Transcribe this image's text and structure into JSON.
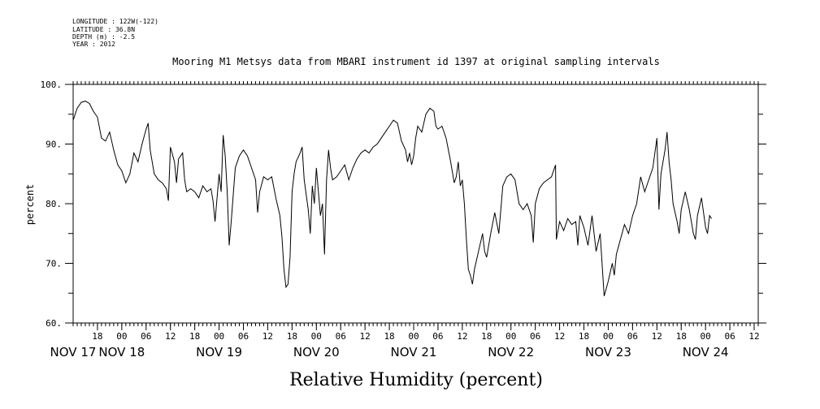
{
  "header": {
    "longitude": "LONGITUDE : 122W(-122)",
    "latitude": "LATITUDE : 36.8N",
    "depth": "DEPTH (m) : -2.5",
    "year": "YEAR : 2012",
    "title": "Mooring M1 Metsys data from MBARI instrument id 1397 at original sampling intervals"
  },
  "chart_data": {
    "type": "line",
    "title": "Mooring M1 Metsys data from MBARI instrument id 1397 at original sampling intervals",
    "xlabel": "Relative Humidity (percent)",
    "ylabel": "percent",
    "ylim": [
      60,
      100
    ],
    "yticks": [
      60,
      70,
      80,
      90,
      100
    ],
    "ytick_labels": [
      "60.",
      "70.",
      "80.",
      "90.",
      "100."
    ],
    "xlim_hours": [
      12,
      181
    ],
    "hour_ticks": [
      {
        "h": 18,
        "label": "18"
      },
      {
        "h": 24,
        "label": "00"
      },
      {
        "h": 30,
        "label": "06"
      },
      {
        "h": 36,
        "label": "12"
      },
      {
        "h": 42,
        "label": "18"
      },
      {
        "h": 48,
        "label": "00"
      },
      {
        "h": 54,
        "label": "06"
      },
      {
        "h": 60,
        "label": "12"
      },
      {
        "h": 66,
        "label": "18"
      },
      {
        "h": 72,
        "label": "00"
      },
      {
        "h": 78,
        "label": "06"
      },
      {
        "h": 84,
        "label": "12"
      },
      {
        "h": 90,
        "label": "18"
      },
      {
        "h": 96,
        "label": "00"
      },
      {
        "h": 102,
        "label": "06"
      },
      {
        "h": 108,
        "label": "12"
      },
      {
        "h": 114,
        "label": "18"
      },
      {
        "h": 120,
        "label": "00"
      },
      {
        "h": 126,
        "label": "06"
      },
      {
        "h": 132,
        "label": "12"
      },
      {
        "h": 138,
        "label": "18"
      },
      {
        "h": 144,
        "label": "00"
      },
      {
        "h": 150,
        "label": "06"
      },
      {
        "h": 156,
        "label": "12"
      },
      {
        "h": 162,
        "label": "18"
      },
      {
        "h": 168,
        "label": "00"
      },
      {
        "h": 174,
        "label": "06"
      },
      {
        "h": 180,
        "label": "12"
      }
    ],
    "day_labels": [
      {
        "h": 12,
        "label": "NOV 17"
      },
      {
        "h": 24,
        "label": "NOV 18"
      },
      {
        "h": 48,
        "label": "NOV 19"
      },
      {
        "h": 72,
        "label": "NOV 20"
      },
      {
        "h": 96,
        "label": "NOV 21"
      },
      {
        "h": 120,
        "label": "NOV 22"
      },
      {
        "h": 144,
        "label": "NOV 23"
      },
      {
        "h": 168,
        "label": "NOV 24"
      }
    ],
    "series": [
      {
        "values": [
          [
            12,
            94
          ],
          [
            13,
            96
          ],
          [
            14,
            97
          ],
          [
            15,
            97.2
          ],
          [
            16,
            96.8
          ],
          [
            17,
            95.5
          ],
          [
            18,
            94.5
          ],
          [
            19,
            91
          ],
          [
            20,
            90.5
          ],
          [
            21,
            92
          ],
          [
            22,
            89
          ],
          [
            23,
            86.5
          ],
          [
            24,
            85.5
          ],
          [
            25,
            83.5
          ],
          [
            26,
            85
          ],
          [
            27,
            88.5
          ],
          [
            28,
            87
          ],
          [
            29,
            90
          ],
          [
            30,
            92.5
          ],
          [
            30.5,
            93.5
          ],
          [
            31,
            89
          ],
          [
            32,
            85
          ],
          [
            33,
            84
          ],
          [
            34,
            83.5
          ],
          [
            35,
            82.5
          ],
          [
            35.5,
            80.5
          ],
          [
            36,
            89.5
          ],
          [
            37,
            87
          ],
          [
            37.5,
            83.5
          ],
          [
            38,
            87.5
          ],
          [
            38.5,
            88
          ],
          [
            39,
            88.5
          ],
          [
            39.5,
            84
          ],
          [
            40,
            82
          ],
          [
            41,
            82.5
          ],
          [
            42,
            82
          ],
          [
            43,
            81
          ],
          [
            44,
            83
          ],
          [
            45,
            82
          ],
          [
            46,
            82.5
          ],
          [
            46.5,
            80.5
          ],
          [
            47,
            77
          ],
          [
            47.5,
            81
          ],
          [
            48,
            85
          ],
          [
            48.5,
            82
          ],
          [
            49,
            91.5
          ],
          [
            49.5,
            88
          ],
          [
            50,
            82
          ],
          [
            50.5,
            73
          ],
          [
            51,
            77
          ],
          [
            52,
            86
          ],
          [
            53,
            88
          ],
          [
            54,
            89
          ],
          [
            55,
            88
          ],
          [
            56,
            86
          ],
          [
            57,
            84
          ],
          [
            57.5,
            78.5
          ],
          [
            58,
            82
          ],
          [
            59,
            84.5
          ],
          [
            60,
            84
          ],
          [
            61,
            84.5
          ],
          [
            62,
            81
          ],
          [
            63,
            78
          ],
          [
            63.5,
            74.5
          ],
          [
            64,
            69
          ],
          [
            64.5,
            66
          ],
          [
            65,
            66.5
          ],
          [
            65.5,
            71
          ],
          [
            66,
            82
          ],
          [
            66.5,
            85
          ],
          [
            67,
            87
          ],
          [
            68,
            88.5
          ],
          [
            68.5,
            89.5
          ],
          [
            69,
            84
          ],
          [
            70,
            79
          ],
          [
            70.5,
            75
          ],
          [
            71,
            83
          ],
          [
            71.5,
            80
          ],
          [
            72,
            86
          ],
          [
            72.5,
            82
          ],
          [
            73,
            78
          ],
          [
            73.5,
            80
          ],
          [
            74,
            71.5
          ],
          [
            74.5,
            84
          ],
          [
            75,
            89
          ],
          [
            75.5,
            86
          ],
          [
            76,
            84
          ],
          [
            77,
            84.5
          ],
          [
            78,
            85.5
          ],
          [
            79,
            86.5
          ],
          [
            80,
            84
          ],
          [
            81,
            86
          ],
          [
            82,
            87.5
          ],
          [
            83,
            88.5
          ],
          [
            84,
            89
          ],
          [
            85,
            88.5
          ],
          [
            86,
            89.5
          ],
          [
            87,
            90
          ],
          [
            88,
            91
          ],
          [
            89,
            92
          ],
          [
            90,
            93
          ],
          [
            91,
            94
          ],
          [
            92,
            93.5
          ],
          [
            93,
            90.5
          ],
          [
            94,
            89
          ],
          [
            94.5,
            87
          ],
          [
            95,
            88.5
          ],
          [
            95.5,
            86.5
          ],
          [
            96,
            88
          ],
          [
            96.5,
            91
          ],
          [
            97,
            93
          ],
          [
            98,
            92
          ],
          [
            99,
            95
          ],
          [
            100,
            96
          ],
          [
            101,
            95.5
          ],
          [
            101.5,
            93
          ],
          [
            102,
            92.5
          ],
          [
            103,
            93
          ],
          [
            104,
            91
          ],
          [
            105,
            87.5
          ],
          [
            106,
            83.5
          ],
          [
            106.5,
            84.5
          ],
          [
            107,
            87
          ],
          [
            107.5,
            83
          ],
          [
            108,
            84
          ],
          [
            108.5,
            80
          ],
          [
            109,
            74
          ],
          [
            109.5,
            69
          ],
          [
            110,
            68
          ],
          [
            110.5,
            66.5
          ],
          [
            111,
            69
          ],
          [
            112,
            72
          ],
          [
            113,
            75
          ],
          [
            113.5,
            72
          ],
          [
            114,
            71
          ],
          [
            115,
            75
          ],
          [
            116,
            78.5
          ],
          [
            117,
            75
          ],
          [
            118,
            83
          ],
          [
            119,
            84.5
          ],
          [
            120,
            85
          ],
          [
            121,
            84
          ],
          [
            122,
            80
          ],
          [
            123,
            79
          ],
          [
            124,
            80
          ],
          [
            125,
            78
          ],
          [
            125.5,
            73.5
          ],
          [
            126,
            80
          ],
          [
            127,
            82.5
          ],
          [
            128,
            83.5
          ],
          [
            129,
            84
          ],
          [
            130,
            84.5
          ],
          [
            131,
            86.5
          ],
          [
            131.2,
            74
          ],
          [
            132,
            77
          ],
          [
            133,
            75.5
          ],
          [
            134,
            77.5
          ],
          [
            135,
            76.5
          ],
          [
            136,
            77
          ],
          [
            136.5,
            73
          ],
          [
            137,
            78
          ],
          [
            138,
            76
          ],
          [
            139,
            73
          ],
          [
            140,
            78
          ],
          [
            141,
            72
          ],
          [
            142,
            75
          ],
          [
            143,
            64.5
          ],
          [
            144,
            67
          ],
          [
            145,
            70
          ],
          [
            145.5,
            68
          ],
          [
            146,
            71.5
          ],
          [
            147,
            74
          ],
          [
            148,
            76.5
          ],
          [
            149,
            75
          ],
          [
            150,
            78
          ],
          [
            151,
            80
          ],
          [
            152,
            84.5
          ],
          [
            153,
            82
          ],
          [
            154,
            84
          ],
          [
            155,
            86
          ],
          [
            156,
            91
          ],
          [
            156.5,
            79
          ],
          [
            157,
            85
          ],
          [
            158,
            89
          ],
          [
            158.5,
            92
          ],
          [
            159,
            87
          ],
          [
            159.5,
            84
          ],
          [
            160,
            80
          ],
          [
            161,
            77
          ],
          [
            161.5,
            75
          ],
          [
            162,
            79
          ],
          [
            163,
            82
          ],
          [
            164,
            79
          ],
          [
            165,
            75
          ],
          [
            165.5,
            74
          ],
          [
            166,
            78
          ],
          [
            167,
            81
          ],
          [
            168,
            76
          ],
          [
            168.5,
            75
          ],
          [
            169,
            78
          ],
          [
            169.5,
            77.5
          ]
        ]
      }
    ]
  }
}
